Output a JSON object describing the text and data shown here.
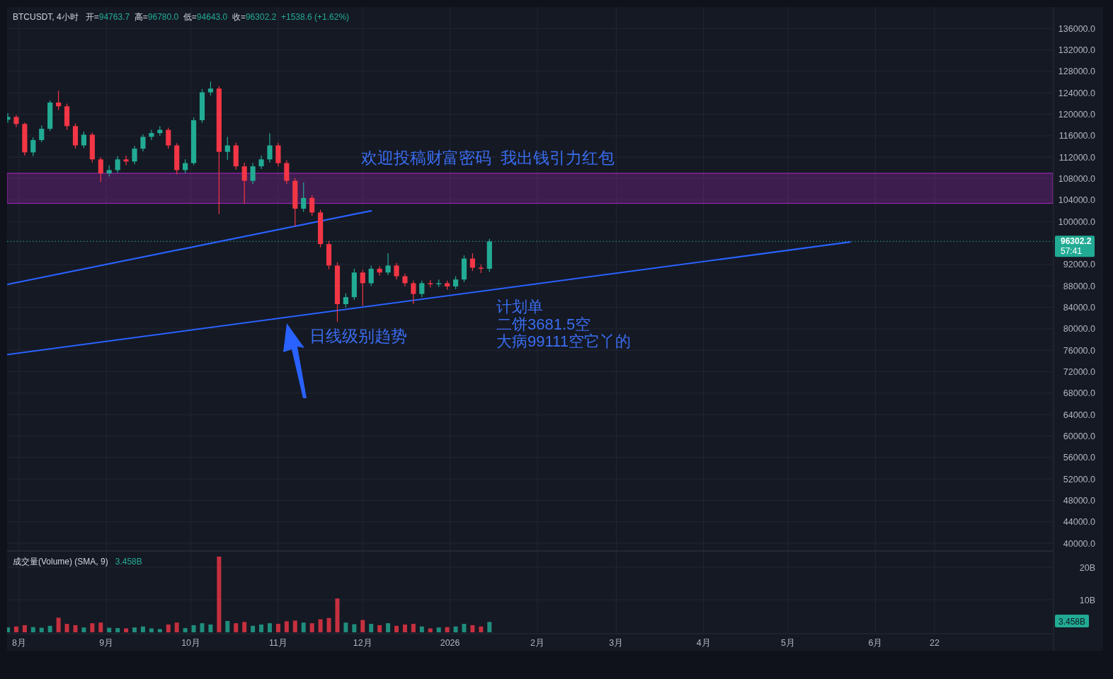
{
  "chart_data": [
    {
      "type": "candlestick",
      "title": "BTCUSDT, 4小时",
      "subtitle": "开=94763.7  高=96780.0  低=94643.0  收=96302.2  +1538.6 (+1.62%)",
      "x": [
        "2025-07-28",
        "2025-07-31",
        "2025-08-03",
        "2025-08-06",
        "2025-08-09",
        "2025-08-12",
        "2025-08-15",
        "2025-08-18",
        "2025-08-21",
        "2025-08-24",
        "2025-08-27",
        "2025-08-30",
        "2025-09-02",
        "2025-09-05",
        "2025-09-08",
        "2025-09-11",
        "2025-09-14",
        "2025-09-17",
        "2025-09-20",
        "2025-09-23",
        "2025-09-26",
        "2025-09-29",
        "2025-10-02",
        "2025-10-05",
        "2025-10-08",
        "2025-10-11",
        "2025-10-14",
        "2025-10-17",
        "2025-10-20",
        "2025-10-23",
        "2025-10-26",
        "2025-10-29",
        "2025-11-01",
        "2025-11-04",
        "2025-11-07",
        "2025-11-10",
        "2025-11-13",
        "2025-11-16",
        "2025-11-19",
        "2025-11-22",
        "2025-11-25",
        "2025-11-28",
        "2025-12-01",
        "2025-12-04",
        "2025-12-07",
        "2025-12-10",
        "2025-12-13",
        "2025-12-16",
        "2025-12-19",
        "2025-12-22",
        "2025-12-25",
        "2025-12-28",
        "2025-12-31",
        "2026-01-03",
        "2026-01-06",
        "2026-01-09",
        "2026-01-12",
        "2026-01-15"
      ],
      "ohlc": [
        [
          119000,
          120200,
          118400,
          119500
        ],
        [
          119500,
          119900,
          117600,
          118200
        ],
        [
          118200,
          118500,
          112300,
          112900
        ],
        [
          112900,
          115700,
          112200,
          115200
        ],
        [
          115200,
          117900,
          114800,
          117300
        ],
        [
          117300,
          122600,
          116900,
          122200
        ],
        [
          122200,
          124400,
          120800,
          121500
        ],
        [
          121500,
          122000,
          117100,
          117800
        ],
        [
          117800,
          118300,
          113600,
          114200
        ],
        [
          114200,
          116800,
          113700,
          116200
        ],
        [
          116200,
          116600,
          111000,
          111600
        ],
        [
          111600,
          112000,
          107400,
          109000
        ],
        [
          109000,
          110500,
          108400,
          109600
        ],
        [
          109600,
          112200,
          109100,
          111600
        ],
        [
          111600,
          112300,
          110500,
          111200
        ],
        [
          111200,
          114100,
          110700,
          113600
        ],
        [
          113600,
          116300,
          113100,
          115800
        ],
        [
          115800,
          117100,
          115200,
          116500
        ],
        [
          116500,
          117800,
          116000,
          117100
        ],
        [
          117100,
          117500,
          113600,
          114200
        ],
        [
          114200,
          114600,
          108800,
          109600
        ],
        [
          109600,
          111600,
          109000,
          110900
        ],
        [
          110900,
          119400,
          110500,
          118900
        ],
        [
          118900,
          124700,
          118400,
          124100
        ],
        [
          124100,
          126100,
          123500,
          124800
        ],
        [
          124800,
          125300,
          101400,
          113000
        ],
        [
          113000,
          115800,
          111500,
          114200
        ],
        [
          114200,
          114700,
          109700,
          110300
        ],
        [
          110300,
          111000,
          103400,
          107600
        ],
        [
          107600,
          110900,
          107000,
          110300
        ],
        [
          110300,
          112300,
          109800,
          111600
        ],
        [
          111600,
          116500,
          111000,
          114200
        ],
        [
          114200,
          114700,
          110300,
          110900
        ],
        [
          110900,
          111400,
          107000,
          107600
        ],
        [
          107600,
          108100,
          99100,
          102400
        ],
        [
          102400,
          107300,
          101800,
          104400
        ],
        [
          104400,
          104900,
          101100,
          101700
        ],
        [
          101700,
          102200,
          95200,
          95800
        ],
        [
          95800,
          96400,
          91100,
          91800
        ],
        [
          91800,
          92400,
          81300,
          84600
        ],
        [
          84600,
          86600,
          84000,
          85900
        ],
        [
          85900,
          91200,
          85400,
          90500
        ],
        [
          90500,
          91000,
          84300,
          88500
        ],
        [
          88500,
          91800,
          88000,
          91200
        ],
        [
          91200,
          91700,
          89900,
          90500
        ],
        [
          90500,
          94100,
          90000,
          91800
        ],
        [
          91800,
          92300,
          89200,
          89800
        ],
        [
          89800,
          90300,
          87900,
          88500
        ],
        [
          88500,
          89000,
          84600,
          86500
        ],
        [
          86500,
          89000,
          85900,
          88500
        ],
        [
          88500,
          89100,
          87700,
          88300
        ],
        [
          88300,
          89200,
          87800,
          88500
        ],
        [
          88500,
          89000,
          87300,
          87900
        ],
        [
          87900,
          89800,
          87400,
          89200
        ],
        [
          89200,
          93700,
          88700,
          93100
        ],
        [
          93100,
          94100,
          90800,
          91400
        ],
        [
          91400,
          92000,
          90400,
          91200
        ],
        [
          91200,
          96780,
          90600,
          96302.2
        ]
      ],
      "series": [
        {
          "type": "line",
          "color": "#2962ff",
          "x": [
            "2025-07-28",
            "2025-12-04"
          ],
          "values": [
            88300,
            102000
          ]
        },
        {
          "type": "line",
          "color": "#2962ff",
          "x": [
            "2025-07-28",
            "2026-05-23"
          ],
          "values": [
            75200,
            96200
          ]
        }
      ],
      "bands": [
        {
          "axis": "y",
          "from": 103400,
          "to": 109000,
          "color": "#9c27b0"
        }
      ],
      "ref_lines": [
        {
          "axis": "y",
          "value": 96302.2,
          "label": "96302.2",
          "color": "#22ab94",
          "line_style": "dotted"
        }
      ],
      "annotations": [
        "欢迎投稿财富密码  我出钱引力红包",
        "日线级别趋势",
        "计划单",
        "二饼3681.5空",
        "大病99111空它丫的",
        "57:41"
      ],
      "xlim": [
        "2025-07-27T18:00",
        "2026-08-03"
      ],
      "xticks": [
        {
          "value": "2025-08-01",
          "label": null
        },
        {
          "value": "2025-09-01",
          "label": null
        },
        {
          "value": "2025-10-01",
          "label": null
        },
        {
          "value": "2025-11-01",
          "label": null
        },
        {
          "value": "2025-12-01",
          "label": null
        },
        {
          "value": "2026-01-01",
          "label": null
        },
        {
          "value": "2026-02-01",
          "label": null
        },
        {
          "value": "2026-03-01",
          "label": null
        },
        {
          "value": "2026-04-01",
          "label": null
        },
        {
          "value": "2026-05-01",
          "label": null
        },
        {
          "value": "2026-06-01",
          "label": null
        },
        {
          "value": "2026-06-22",
          "label": null
        }
      ],
      "ylim": [
        38700,
        140000
      ],
      "yticks": [
        {
          "value": 40000,
          "label": "40000.0"
        },
        {
          "value": 44000,
          "label": "44000.0"
        },
        {
          "value": 48000,
          "label": "48000.0"
        },
        {
          "value": 52000,
          "label": "52000.0"
        },
        {
          "value": 56000,
          "label": "56000.0"
        },
        {
          "value": 60000,
          "label": "60000.0"
        },
        {
          "value": 64000,
          "label": "64000.0"
        },
        {
          "value": 68000,
          "label": "68000.0"
        },
        {
          "value": 72000,
          "label": "72000.0"
        },
        {
          "value": 76000,
          "label": "76000.0"
        },
        {
          "value": 80000,
          "label": "80000.0"
        },
        {
          "value": 84000,
          "label": "84000.0"
        },
        {
          "value": 88000,
          "label": "88000.0"
        },
        {
          "value": 92000,
          "label": "92000.0"
        },
        {
          "value": 100000,
          "label": "100000.0"
        },
        {
          "value": 104000,
          "label": "104000.0"
        },
        {
          "value": 108000,
          "label": "108000.0"
        },
        {
          "value": 112000,
          "label": "112000.0"
        },
        {
          "value": 116000,
          "label": "116000.0"
        },
        {
          "value": 120000,
          "label": "120000.0"
        },
        {
          "value": 124000,
          "label": "124000.0"
        },
        {
          "value": 128000,
          "label": "128000.0"
        },
        {
          "value": 132000,
          "label": "132000.0"
        },
        {
          "value": 136000,
          "label": "136000.0"
        }
      ],
      "grid": true,
      "tick_labels": "y"
    },
    {
      "type": "bar",
      "title": "成交量(Volume) (SMA, 9)",
      "subtitle": "3.458B",
      "x": [
        "2025-07-28",
        "2025-07-31",
        "2025-08-03",
        "2025-08-06",
        "2025-08-09",
        "2025-08-12",
        "2025-08-15",
        "2025-08-18",
        "2025-08-21",
        "2025-08-24",
        "2025-08-27",
        "2025-08-30",
        "2025-09-02",
        "2025-09-05",
        "2025-09-08",
        "2025-09-11",
        "2025-09-14",
        "2025-09-17",
        "2025-09-20",
        "2025-09-23",
        "2025-09-26",
        "2025-09-29",
        "2025-10-02",
        "2025-10-05",
        "2025-10-08",
        "2025-10-11",
        "2025-10-14",
        "2025-10-17",
        "2025-10-20",
        "2025-10-23",
        "2025-10-26",
        "2025-10-29",
        "2025-11-01",
        "2025-11-04",
        "2025-11-07",
        "2025-11-10",
        "2025-11-13",
        "2025-11-16",
        "2025-11-19",
        "2025-11-22",
        "2025-11-25",
        "2025-11-28",
        "2025-12-01",
        "2025-12-04",
        "2025-12-07",
        "2025-12-10",
        "2025-12-13",
        "2025-12-16",
        "2025-12-19",
        "2025-12-22",
        "2025-12-25",
        "2025-12-28",
        "2025-12-31",
        "2026-01-03",
        "2026-01-06",
        "2026-01-09",
        "2026-01-12",
        "2026-01-15"
      ],
      "values": [
        1.5,
        1.8,
        2.2,
        1.6,
        1.4,
        2.0,
        4.5,
        2.6,
        2.2,
        1.5,
        2.8,
        3.0,
        1.4,
        1.3,
        1.2,
        1.5,
        1.8,
        1.2,
        1.0,
        2.4,
        3.0,
        1.3,
        2.2,
        2.8,
        2.4,
        23.3,
        3.5,
        2.8,
        3.2,
        2.0,
        2.4,
        2.8,
        2.6,
        3.4,
        3.6,
        3.0,
        2.8,
        4.0,
        4.4,
        10.4,
        3.0,
        2.5,
        3.8,
        2.6,
        2.2,
        2.8,
        2.0,
        2.4,
        2.6,
        1.8,
        1.2,
        1.5,
        1.6,
        1.8,
        2.6,
        2.2,
        1.8,
        3.2
      ],
      "colors": [
        "#22ab94",
        "#f23645",
        "#f23645",
        "#22ab94",
        "#22ab94",
        "#22ab94",
        "#f23645",
        "#f23645",
        "#f23645",
        "#22ab94",
        "#f23645",
        "#f23645",
        "#22ab94",
        "#22ab94",
        "#f23645",
        "#22ab94",
        "#22ab94",
        "#22ab94",
        "#22ab94",
        "#f23645",
        "#f23645",
        "#22ab94",
        "#22ab94",
        "#22ab94",
        "#22ab94",
        "#f23645",
        "#22ab94",
        "#f23645",
        "#f23645",
        "#22ab94",
        "#22ab94",
        "#22ab94",
        "#f23645",
        "#f23645",
        "#f23645",
        "#22ab94",
        "#f23645",
        "#f23645",
        "#f23645",
        "#f23645",
        "#22ab94",
        "#22ab94",
        "#f23645",
        "#22ab94",
        "#f23645",
        "#22ab94",
        "#f23645",
        "#f23645",
        "#f23645",
        "#22ab94",
        "#f23645",
        "#22ab94",
        "#f23645",
        "#22ab94",
        "#22ab94",
        "#f23645",
        "#f23645",
        "#22ab94"
      ],
      "xlim": [
        "2025-07-27T18:00",
        "2026-08-03"
      ],
      "xticks": [
        {
          "value": "2025-08-01",
          "label": "8月"
        },
        {
          "value": "2025-09-01",
          "label": "9月"
        },
        {
          "value": "2025-10-01",
          "label": "10月"
        },
        {
          "value": "2025-11-01",
          "label": "11月"
        },
        {
          "value": "2025-12-01",
          "label": "12月"
        },
        {
          "value": "2026-01-01",
          "label": "2026"
        },
        {
          "value": "2026-02-01",
          "label": "2月"
        },
        {
          "value": "2026-03-01",
          "label": "3月"
        },
        {
          "value": "2026-04-01",
          "label": "4月"
        },
        {
          "value": "2026-05-01",
          "label": "5月"
        },
        {
          "value": "2026-06-01",
          "label": "6月"
        },
        {
          "value": "2026-06-22",
          "label": "22"
        }
      ],
      "ylim": [
        0,
        24.8
      ],
      "yticks": [
        {
          "value": 10,
          "label": "10B"
        },
        {
          "value": 20,
          "label": "20B"
        }
      ],
      "grid": true
    }
  ]
}
